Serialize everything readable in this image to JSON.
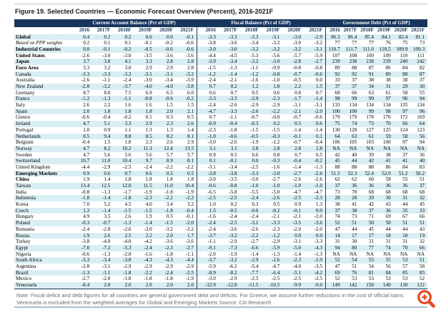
{
  "figure": {
    "title": "Figure 19. Selected Countries — Economic Forecast Overview (Percent), 2016-2021F",
    "note": "Note: Fiscal deficit and debt figures for all countries are general government debt and deficits. For Greece, we assume further reductions in the cost of official loans. Venezuela is excluded from the weighted averages for Global and Emerging Markets Source: Citi Research"
  },
  "colors": {
    "header_bg": "#17365D",
    "row_stripe": "#D9EEF3",
    "separator": "#17365D",
    "bottom_rule": "#A8BDD0",
    "zoom_icon_orange": "#E8491F"
  },
  "icons": {
    "zoom_button": "zoom-in-icon"
  },
  "table": {
    "groups": [
      "Current Account Balance (Pct of GDP)",
      "Fiscal Balance (Pct of GDP)",
      "Government Debt (Pct of GDP)"
    ],
    "years": [
      "2016",
      "2017F",
      "2018F",
      "2019F",
      "2020F",
      "2021F"
    ],
    "rows": [
      {
        "name": "Global",
        "style": "bold",
        "ca": [
          "0.4",
          "0.2",
          "0.2",
          "0.0",
          "0.0",
          "-0.1"
        ],
        "fb": [
          "-3.3",
          "-3.3",
          "-3.3",
          "-3.1",
          "-3.0",
          "-2.9"
        ],
        "gd": [
          "86.3",
          "86.4",
          "85.4",
          "84.1",
          "82.4",
          "81.1"
        ]
      },
      {
        "name": "Based on PPP weights",
        "style": "italic",
        "ca": [
          "0.2",
          "0.1",
          "0.1",
          "-0.1",
          "-0.2",
          "-0.6"
        ],
        "fb": [
          "-3.8",
          "-3.6",
          "-3.4",
          "-3.2",
          "-3.0",
          "-3.2"
        ],
        "gd": [
          "77",
          "77",
          "77",
          "76",
          "75",
          "73"
        ]
      },
      {
        "name": "Industrial Countries",
        "style": "bold",
        "ca": [
          "0.0",
          "-0.1",
          "-0.2",
          "-0.5",
          "-0.6",
          "-0.6"
        ],
        "fb": [
          "-3.0",
          "-3.0",
          "-3.2",
          "-3.2",
          "-3.2",
          "-3.1"
        ],
        "gd": [
          "110.7",
          "111.7",
          "111.0",
          "110.5",
          "109.9",
          "109.3"
        ]
      },
      {
        "name": "United States",
        "style": "bold",
        "ca": [
          "-2.6",
          "-3.0",
          "-3.0",
          "-3.5",
          "-3.6",
          "-3.6"
        ],
        "fb": [
          "-4.4",
          "-4.5",
          "-5.3",
          "-5.6",
          "-5.7",
          "-5.9"
        ],
        "gd": [
          "107",
          "108",
          "109",
          "109",
          "110",
          "111"
        ]
      },
      {
        "name": "Japan",
        "style": "bold",
        "ca": [
          "3.7",
          "3.8",
          "4.1",
          "3.3",
          "2.8",
          "2.8"
        ],
        "fb": [
          "-3.9",
          "-3.4",
          "-3.2",
          "-3.0",
          "-2.8",
          "-2.7"
        ],
        "gd": [
          "239",
          "238",
          "238",
          "239",
          "240",
          "242"
        ]
      },
      {
        "name": "Euro Area",
        "style": "bold",
        "ca": [
          "3.3",
          "3.2",
          "3.0",
          "2.9",
          "2.9",
          "2.8"
        ],
        "fb": [
          "-1.5",
          "-1.3",
          "-1.1",
          "-0.9",
          "-0.8",
          "-0.8"
        ],
        "gd": [
          "89",
          "88",
          "87",
          "86",
          "84",
          "82"
        ]
      },
      {
        "name": "Canada",
        "style": "normal",
        "ca": [
          "-3.3",
          "-3.3",
          "-3.2",
          "-3.1",
          "-3.1",
          "-3.2"
        ],
        "fb": [
          "-1.2",
          "-1.4",
          "-1.2",
          "-0.8",
          "-0.7",
          "-0.6"
        ],
        "gd": [
          "92",
          "92",
          "91",
          "89",
          "88",
          "87"
        ]
      },
      {
        "name": "Australia",
        "style": "normal",
        "ca": [
          "-2.6",
          "-1.1",
          "-2.4",
          "-3.0",
          "-3.4",
          "-3.9"
        ],
        "fb": [
          "-2.4",
          "-2.1",
          "-1.6",
          "-1.0",
          "-0.5",
          "0.0"
        ],
        "gd": [
          "33",
          "37",
          "38",
          "38",
          "38",
          "37"
        ]
      },
      {
        "name": "New Zealand",
        "style": "normal",
        "ca": [
          "-2.8",
          "-3.2",
          "-3.7",
          "-4.0",
          "-4.0",
          "-3.8"
        ],
        "fb": [
          "0.7",
          "0.2",
          "1.2",
          "1.8",
          "2.2",
          "1.5"
        ],
        "gd": [
          "37",
          "37",
          "34",
          "31",
          "29",
          "30"
        ]
      },
      {
        "name": "Germany",
        "style": "normal",
        "ca": [
          "8.7",
          "8.0",
          "7.5",
          "6.9",
          "6.5",
          "6.0"
        ],
        "fb": [
          "0.6",
          "0.7",
          "0.5",
          "0.6",
          "0.8",
          "0.7"
        ],
        "gd": [
          "68",
          "66",
          "63",
          "61",
          "58",
          "55"
        ]
      },
      {
        "name": "France",
        "style": "normal",
        "ca": [
          "-1.2",
          "-1.3",
          "-1.1",
          "-0.8",
          "-0.6",
          "-0.2"
        ],
        "fb": [
          "-3.3",
          "-3.3",
          "-2.9",
          "-2.3",
          "-1.7",
          "-1.4"
        ],
        "gd": [
          "98",
          "99",
          "99",
          "97",
          "96",
          "94"
        ]
      },
      {
        "name": "Italy",
        "style": "normal",
        "ca": [
          "2.6",
          "2.2",
          "1.6",
          "1.6",
          "1.5",
          "1.5"
        ],
        "fb": [
          "-2.4",
          "-2.6",
          "-2.9",
          "-2.9",
          "-3.1",
          "-3.1"
        ],
        "gd": [
          "133",
          "134",
          "134",
          "134",
          "135",
          "134"
        ]
      },
      {
        "name": "Spain",
        "style": "normal",
        "ca": [
          "2.0",
          "1.8",
          "1.8",
          "1.8",
          "2.0",
          "2.1"
        ],
        "fb": [
          "-4.7",
          "-3.3",
          "-2.6",
          "-2.2",
          "-2.1",
          "-2.0"
        ],
        "gd": [
          "100",
          "100",
          "99",
          "98",
          "97",
          "96"
        ]
      },
      {
        "name": "Greece",
        "style": "normal",
        "ca": [
          "-0.6",
          "-0.4",
          "-0.2",
          "0.1",
          "0.3",
          "0.5"
        ],
        "fb": [
          "0.7",
          "-1.1",
          "-0.7",
          "-0.8",
          "-0.7",
          "-0.6"
        ],
        "gd": [
          "179",
          "179",
          "178",
          "176",
          "172",
          "169"
        ]
      },
      {
        "name": "Ireland",
        "style": "normal",
        "ca": [
          "4.7",
          "5.1",
          "3.3",
          "2.9",
          "2.3",
          "2.6"
        ],
        "fb": [
          "-0.9",
          "-0.4",
          "-0.3",
          "0.2",
          "0.5",
          "0.6"
        ],
        "gd": [
          "75",
          "74",
          "73",
          "70",
          "66",
          "64"
        ]
      },
      {
        "name": "Portugal",
        "style": "normal",
        "ca": [
          "1.0",
          "0.9",
          "1.1",
          "1.3",
          "1.3",
          "1.4"
        ],
        "fb": [
          "-2.3",
          "-1.8",
          "-1.5",
          "-1.5",
          "-1.4",
          "-1.4"
        ],
        "gd": [
          "130",
          "128",
          "127",
          "125",
          "124",
          "123"
        ]
      },
      {
        "name": "Netherlands",
        "style": "normal",
        "ca": [
          "8.5",
          "9.4",
          "8.8",
          "8.5",
          "8.2",
          "8.1"
        ],
        "fb": [
          "-1.0",
          "-0.6",
          "-0.5",
          "-0.3",
          "-0.1",
          "0.1"
        ],
        "gd": [
          "64",
          "63",
          "61",
          "59",
          "58",
          "56"
        ]
      },
      {
        "name": "Belgium",
        "style": "normal",
        "ca": [
          "-0.4",
          "1.5",
          "1.8",
          "2.3",
          "2.6",
          "2.9"
        ],
        "fb": [
          "-3.0",
          "-2.6",
          "-1.9",
          "-1.2",
          "-0.7",
          "-0.4"
        ],
        "gd": [
          "106",
          "105",
          "103",
          "100",
          "97",
          "94"
        ]
      },
      {
        "name": "Norway",
        "style": "normal",
        "ca": [
          "4.7",
          "8.2",
          "10.2",
          "11.3",
          "12.4",
          "13.5"
        ],
        "fb": [
          "3.1",
          "3.1",
          "2.8",
          "2.8",
          "2.8",
          "2.8"
        ],
        "gd": [
          "NA",
          "NA",
          "NA",
          "NA",
          "NA",
          "NA"
        ]
      },
      {
        "name": "Sweden",
        "style": "normal",
        "ca": [
          "4.7",
          "5.6",
          "5.6",
          "5.6",
          "5.7",
          "5.7"
        ],
        "fb": [
          "0.9",
          "0.5",
          "0.6",
          "0.8",
          "0.7",
          "0.5"
        ],
        "gd": [
          "42",
          "40",
          "39",
          "38",
          "37",
          "36"
        ]
      },
      {
        "name": "Switzerland",
        "style": "normal",
        "ca": [
          "10.7",
          "11.0",
          "10.4",
          "9.7",
          "8.9",
          "8.1"
        ],
        "fb": [
          "0.1",
          "-0.1",
          "0.0",
          "-0.3",
          "-0.4",
          "-0.2"
        ],
        "gd": [
          "45",
          "44",
          "42",
          "41",
          "41",
          "40"
        ]
      },
      {
        "name": "United Kingdom",
        "style": "normal",
        "ca": [
          "-4.4",
          "-2.9",
          "-2.5",
          "-2.4",
          "-2.2",
          "-2.2"
        ],
        "fb": [
          "-3.1",
          "-3.4",
          "-2.5",
          "-1.6",
          "-1.4",
          "-1.3"
        ],
        "gd": [
          "88",
          "88",
          "88",
          "86",
          "84",
          "83"
        ]
      },
      {
        "name": "Emerging Markets",
        "style": "bold",
        "ca": [
          "0.9",
          "0.6",
          "0.7",
          "0.6",
          "0.5",
          "0.5"
        ],
        "fb": [
          "-3.8",
          "-3.8",
          "-3.3",
          "-3.0",
          "-2.7",
          "-2.6"
        ],
        "gd": [
          "51.5",
          "52.3",
          "52.4",
          "52.0",
          "51.2",
          "50.2"
        ]
      },
      {
        "name": "China",
        "style": "bold",
        "ca": [
          "1.9",
          "1.4",
          "1.8",
          "1.8",
          "1.8",
          "1.8"
        ],
        "fb": [
          "-3.0",
          "-3.5",
          "-3.0",
          "-2.7",
          "-2.6",
          "-2.6"
        ],
        "gd": [
          "62",
          "62",
          "60",
          "58",
          "55",
          "51"
        ]
      },
      {
        "name": "Taiwan",
        "style": "normal",
        "ca": [
          "13.4",
          "12.5",
          "12.0",
          "11.5",
          "11.0",
          "10.4"
        ],
        "fb": [
          "-0.6",
          "-0.8",
          "-1.0",
          "-1.0",
          "-1.0",
          "-1.0"
        ],
        "gd": [
          "37",
          "36",
          "36",
          "36",
          "36",
          "37"
        ]
      },
      {
        "name": "India",
        "style": "normal",
        "ca": [
          "-0.8",
          "-1.3",
          "-1.7",
          "-1.9",
          "-1.8",
          "-1.9"
        ],
        "fb": [
          "-6.5",
          "-5.8",
          "-5.5",
          "-5.0",
          "-4.7",
          "-4.7"
        ],
        "gd": [
          "73",
          "70",
          "68",
          "68",
          "68",
          "68"
        ]
      },
      {
        "name": "Indonesia",
        "style": "normal",
        "ca": [
          "-1.8",
          "-1.4",
          "-1.8",
          "-2.3",
          "-2.2",
          "-2.2"
        ],
        "fb": [
          "-2.5",
          "-2.5",
          "-2.4",
          "-2.6",
          "-2.5",
          "-2.3"
        ],
        "gd": [
          "28",
          "28",
          "29",
          "30",
          "31",
          "32"
        ]
      },
      {
        "name": "Korea",
        "style": "normal",
        "ca": [
          "7.0",
          "5.2",
          "4.5",
          "4.0",
          "3.4",
          "3.2"
        ],
        "fb": [
          "1.0",
          "0.2",
          "0.3",
          "0.5",
          "0.9",
          "1.3"
        ],
        "gd": [
          "38",
          "41",
          "42",
          "43",
          "44",
          "45"
        ]
      },
      {
        "name": "Czech",
        "style": "normal",
        "ca": [
          "1.2",
          "-1.4",
          "-1.5",
          "-1.5",
          "-1.8",
          "-0.4"
        ],
        "fb": [
          "1.5",
          "-0.5",
          "-0.6",
          "-0.2",
          "-0.1",
          "0.0"
        ],
        "gd": [
          "37",
          "38",
          "37",
          "36",
          "35",
          "33"
        ]
      },
      {
        "name": "Hungary",
        "style": "normal",
        "ca": [
          "4.9",
          "3.5",
          "2.6",
          "1.9",
          "0.5",
          "-0.1"
        ],
        "fb": [
          "-1.6",
          "-2.4",
          "-2.4",
          "-2.1",
          "-2.1",
          "-2.0"
        ],
        "gd": [
          "74",
          "73",
          "71",
          "69",
          "67",
          "66"
        ]
      },
      {
        "name": "Poland",
        "style": "normal",
        "ca": [
          "-0.3",
          "-0.7",
          "-1.3",
          "-1.4",
          "-1.5",
          "-2.0"
        ],
        "fb": [
          "-2.4",
          "-2.5",
          "-3.1",
          "-3.3",
          "-3.5",
          "-3.6"
        ],
        "gd": [
          "52",
          "51",
          "50",
          "50",
          "51",
          "51"
        ]
      },
      {
        "name": "Romania",
        "style": "normal",
        "ca": [
          "-2.4",
          "-2.8",
          "-2.6",
          "-3.0",
          "-3.2",
          "-3.2"
        ],
        "fb": [
          "-2.4",
          "-3.6",
          "-2.6",
          "-2.3",
          "-2.0",
          "-2.0"
        ],
        "gd": [
          "47",
          "44",
          "45",
          "44",
          "44",
          "43"
        ]
      },
      {
        "name": "Russia",
        "style": "normal",
        "ca": [
          "1.9",
          "2.6",
          "2.5",
          "2.2",
          "2.0",
          "1.7"
        ],
        "fb": [
          "-3.7",
          "-3.2",
          "-2.2",
          "-1.2",
          "0.0",
          "0.0"
        ],
        "gd": [
          "14",
          "17",
          "17",
          "18",
          "18",
          "19"
        ]
      },
      {
        "name": "Turkey",
        "style": "normal",
        "ca": [
          "-3.8",
          "-4.0",
          "-4.0",
          "-4.2",
          "-3.6",
          "-3.6"
        ],
        "fb": [
          "-1.1",
          "-2.9",
          "-2.7",
          "-2.9",
          "-3.1",
          "-3.3"
        ],
        "gd": [
          "31",
          "30",
          "31",
          "31",
          "31",
          "32"
        ]
      },
      {
        "name": "Egypt",
        "style": "normal",
        "ca": [
          "-7.0",
          "-7.2",
          "-5.3",
          "-2.4",
          "-2.3",
          "-2.7"
        ],
        "fb": [
          "-9.1",
          "-7.3",
          "-6.6",
          "-5.9",
          "-5.0",
          "-4.3"
        ],
        "gd": [
          "94",
          "80",
          "77",
          "74",
          "70",
          "66"
        ]
      },
      {
        "name": "Nigeria",
        "style": "normal",
        "ca": [
          "-0.6",
          "-1.3",
          "-2.0",
          "-1.6",
          "-1.8",
          "-1.1"
        ],
        "fb": [
          "-2.0",
          "-1.9",
          "-1.4",
          "-1.3",
          "-1.4",
          "-1.3"
        ],
        "gd": [
          "NA",
          "NA",
          "NA",
          "NA",
          "NA",
          "NA"
        ]
      },
      {
        "name": "South Africa",
        "style": "normal",
        "ca": [
          "-3.3",
          "-3.4",
          "-3.8",
          "-4.3",
          "-4.3",
          "-4.4"
        ],
        "fb": [
          "-3.7",
          "-3.2",
          "-2.9",
          "-2.6",
          "-2.3",
          "-1.9"
        ],
        "gd": [
          "52",
          "54",
          "55",
          "55",
          "53",
          "51"
        ]
      },
      {
        "name": "Argentina",
        "style": "normal",
        "ca": [
          "-2.8",
          "-3.1",
          "-2.9",
          "-2.9",
          "-2.9",
          "-2.9"
        ],
        "fb": [
          "-5.9",
          "-6.2",
          "-5.4",
          "-4.7",
          "-4.0",
          "-3.5"
        ],
        "gd": [
          "47",
          "51",
          "54",
          "56",
          "57",
          "58"
        ]
      },
      {
        "name": "Brazil",
        "style": "normal",
        "ca": [
          "-1.3",
          "-1.1",
          "-1.8",
          "-2.2",
          "-2.4",
          "-2.5"
        ],
        "fb": [
          "-8.9",
          "-8.2",
          "-7.7",
          "-6.4",
          "-5.1",
          "-4.2"
        ],
        "gd": [
          "69",
          "76",
          "81",
          "84",
          "85",
          "85"
        ]
      },
      {
        "name": "Mexico",
        "style": "normal",
        "ca": [
          "-2.7",
          "-2.0",
          "-1.8",
          "-1.8",
          "-1.8",
          "-1.9"
        ],
        "fb": [
          "-3.0",
          "-2.9",
          "-2.5",
          "-2.5",
          "-2.5",
          "-2.5"
        ],
        "gd": [
          "52",
          "53",
          "53",
          "53",
          "53",
          "52"
        ]
      },
      {
        "name": "Venezuela",
        "style": "normal",
        "ca": [
          "-8.4",
          "2.0",
          "2.0",
          "2.0",
          "2.0",
          "2.0"
        ],
        "fb": [
          "-12.9",
          "-12.8",
          "-11.5",
          "-10.5",
          "-9.9",
          "-9.0"
        ],
        "gd": [
          "149",
          "142",
          "150",
          "140",
          "130",
          "122"
        ]
      }
    ]
  }
}
